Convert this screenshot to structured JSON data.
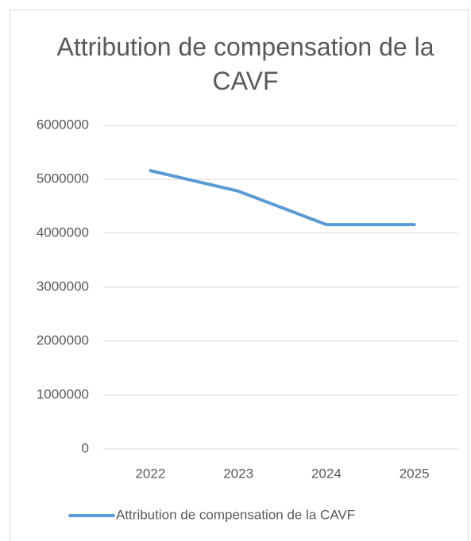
{
  "chart_data": {
    "type": "line",
    "title": "Attribution de compensation de la CAVF",
    "categories": [
      "2022",
      "2023",
      "2024",
      "2025"
    ],
    "series": [
      {
        "name": "Attribution de compensation de la CAVF",
        "color": "#5b9bd5",
        "values": [
          5160000,
          4780000,
          4160000,
          4160000
        ]
      }
    ],
    "ylim": [
      0,
      6000000
    ],
    "yticks": [
      0,
      1000000,
      2000000,
      3000000,
      4000000,
      5000000,
      6000000
    ],
    "grid": true,
    "legend": "bottom"
  }
}
